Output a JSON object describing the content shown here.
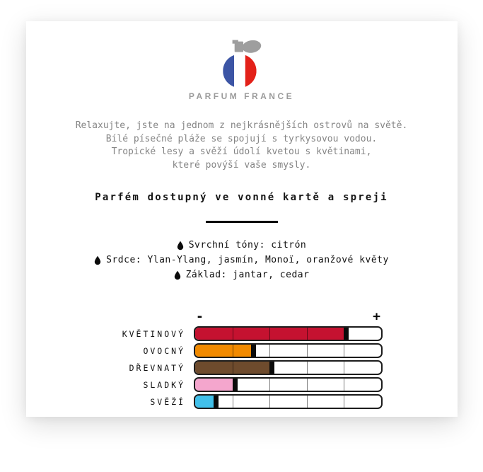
{
  "brand": {
    "name": "PARFUM FRANCE",
    "logo_colors": {
      "blue": "#3c55a5",
      "white": "#ffffff",
      "red": "#e32119",
      "gray": "#9e9e9e"
    }
  },
  "description": {
    "lines": [
      "Relaxujte, jste na jednom z nejkrásnějších ostrovů na světě.",
      "Bílé písečné pláže se spojují s tyrkysovou vodou.",
      "Tropické lesy a svěží údolí kvetou s květinami,",
      "které povýší vaše smysly."
    ]
  },
  "availability": "Parfém dostupný ve vonné kartě a spreji",
  "notes": [
    {
      "label": "Svrchní tóny: citrón"
    },
    {
      "label": "Srdce: Ylan-Ylang, jasmín, Monoï, oranžové květy"
    },
    {
      "label": "Základ: jantar, cedar"
    }
  ],
  "chart_data": {
    "type": "bar",
    "orientation": "horizontal",
    "title": "",
    "scale_min_label": "-",
    "scale_max_label": "+",
    "max": 100,
    "gridline_interval": 20,
    "grid": true,
    "categories": [
      "KVĚTINOVÝ",
      "OVOCNÝ",
      "DŘEVNATÝ",
      "SLADKÝ",
      "SVĚŽÍ"
    ],
    "values": [
      80,
      30,
      40,
      20,
      10
    ],
    "colors": [
      "#c51230",
      "#f18a00",
      "#6e4b2d",
      "#f4a6cd",
      "#41c0ea"
    ],
    "marker_color": "#0b0b0b"
  }
}
